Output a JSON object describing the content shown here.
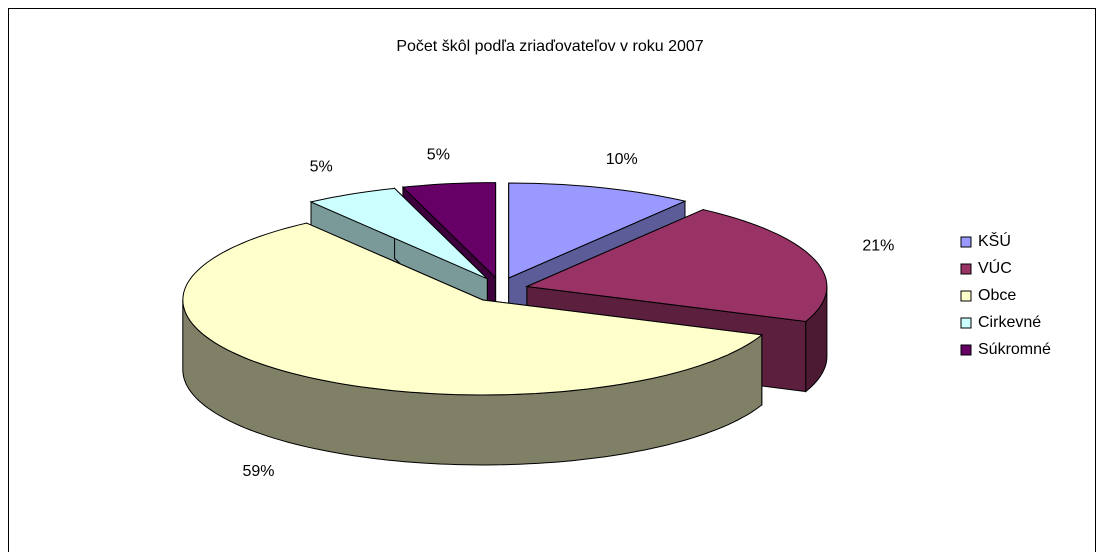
{
  "chart_data": {
    "type": "pie",
    "title": "Počet škôl podľa zriaďovateľov v roku 2007",
    "categories": [
      "KŠÚ",
      "VÚC",
      "Obce",
      "Cirkevné",
      "Súkromné"
    ],
    "values": [
      10,
      21,
      59,
      5,
      5
    ],
    "value_labels": [
      "10%",
      "21%",
      "59%",
      "5%",
      "5%"
    ],
    "colors": [
      "#9999ff",
      "#993366",
      "#ffffcc",
      "#ccffff",
      "#660066"
    ],
    "legend": "right"
  }
}
